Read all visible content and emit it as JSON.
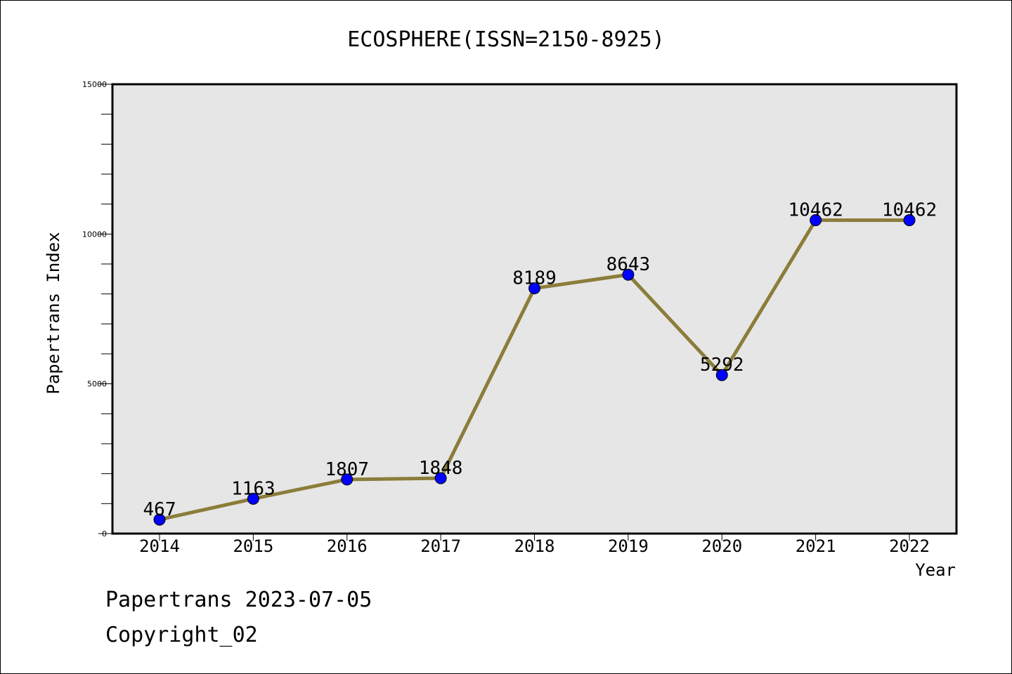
{
  "chart_data": {
    "type": "line",
    "title": "ECOSPHERE(ISSN=2150-8925)",
    "xlabel": "Year",
    "ylabel": "Papertrans Index",
    "x": [
      "2014",
      "2015",
      "2016",
      "2017",
      "2018",
      "2019",
      "2020",
      "2021",
      "2022"
    ],
    "values": [
      467,
      1163,
      1807,
      1848,
      8189,
      8643,
      5292,
      10462,
      10462
    ],
    "data_labels": [
      "467",
      "1163",
      "1807",
      "1848",
      "8189",
      "8643",
      "5292",
      "10462",
      "10462"
    ],
    "ylim": [
      0,
      15000
    ],
    "yticks": [
      "0",
      "5000",
      "10000",
      "15000"
    ],
    "grid": false,
    "legend": "none",
    "colors": {
      "line": "#8b7d3a",
      "marker": "#0000ff",
      "plot_background": "#e6e6e6"
    }
  },
  "footer": {
    "line1": "Papertrans 2023-07-05",
    "line2": "Copyright_02"
  }
}
